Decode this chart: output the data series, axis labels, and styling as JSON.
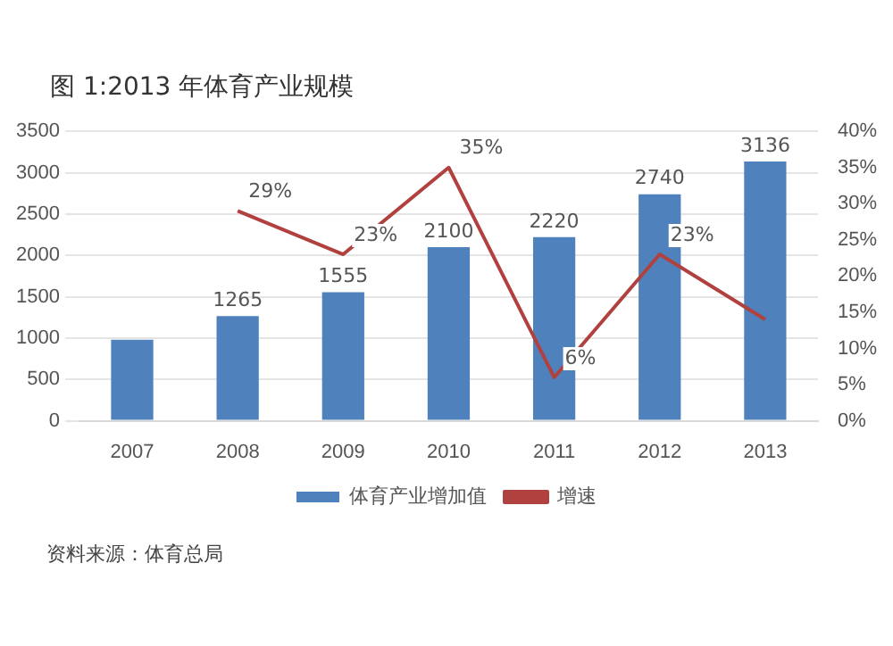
{
  "chart_data": {
    "type": "bar",
    "title": "图 1:2013 年体育产业规模",
    "categories": [
      "2007",
      "2008",
      "2009",
      "2010",
      "2011",
      "2012",
      "2013"
    ],
    "series": [
      {
        "name": "体育产业增加值",
        "color": "#4f81bd",
        "values": [
          980,
          1265,
          1555,
          2100,
          2220,
          2740,
          3136
        ],
        "value_labels": [
          null,
          "1265",
          "1555",
          "2100",
          "2220",
          "2740",
          "3136"
        ]
      },
      {
        "name": "增速",
        "type": "line",
        "axis": "y2",
        "color": "#b0413e",
        "values": [
          null,
          29,
          23,
          35,
          6,
          23,
          14
        ],
        "value_labels": [
          null,
          "29%",
          "23%",
          "35%",
          "6%",
          "23%",
          null
        ]
      }
    ],
    "ylim": [
      0,
      3500
    ],
    "yticks": [
      0,
      500,
      1000,
      1500,
      2000,
      2500,
      3000,
      3500
    ],
    "y2lim": [
      0,
      40
    ],
    "y2ticks": [
      {
        "value": 0,
        "label": "0%"
      },
      {
        "value": 5,
        "label": "5%"
      },
      {
        "value": 10,
        "label": "10%"
      },
      {
        "value": 15,
        "label": "15%"
      },
      {
        "value": 20,
        "label": "20%"
      },
      {
        "value": 25,
        "label": "25%"
      },
      {
        "value": 30,
        "label": "30%"
      },
      {
        "value": 35,
        "label": "35%"
      },
      {
        "value": 40,
        "label": "40%"
      }
    ],
    "grid": "y",
    "legend": "bottom",
    "marker": "none",
    "line_style": "solid",
    "annotations": [
      "资料来源：体育总局"
    ]
  }
}
